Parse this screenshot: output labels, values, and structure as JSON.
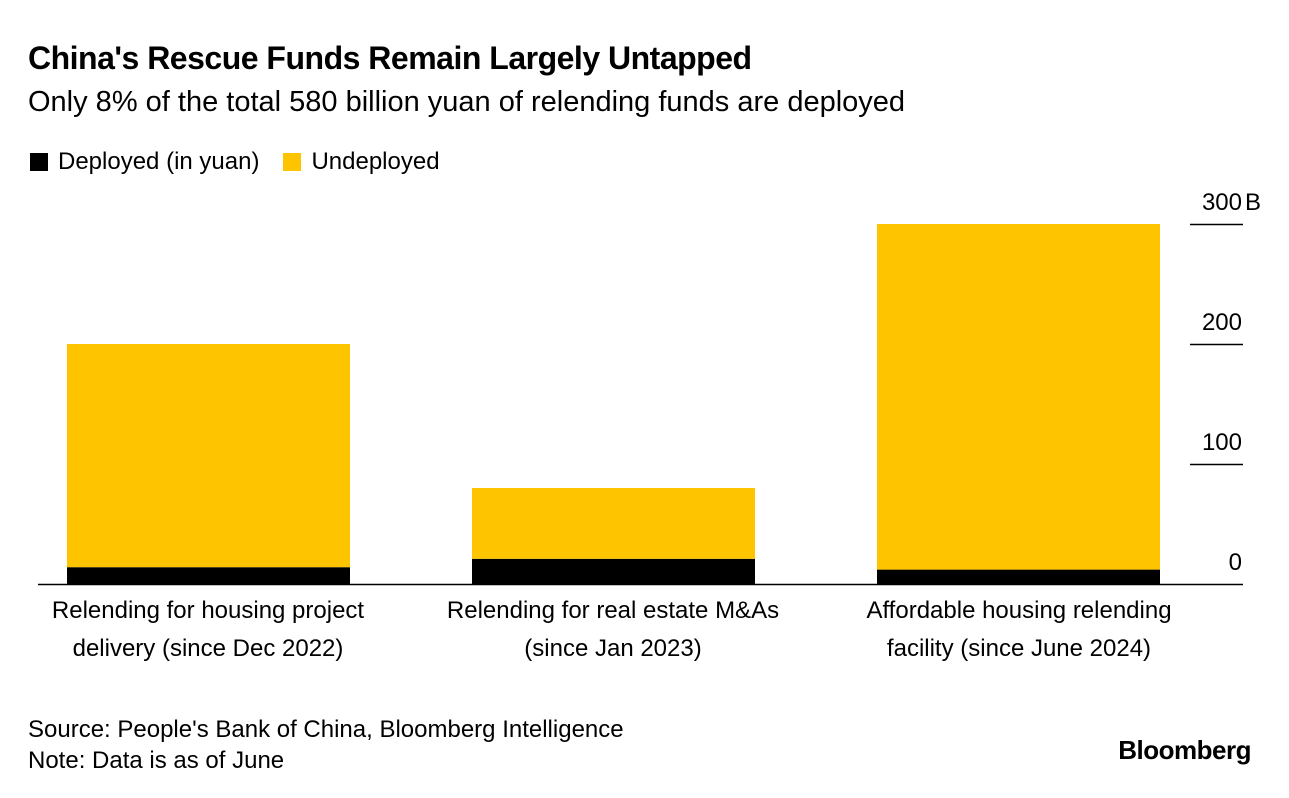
{
  "chart_data": {
    "type": "bar",
    "stacked": true,
    "title": "China's Rescue Funds Remain Largely Untapped",
    "subtitle": "Only 8% of the total 580 billion yuan of relending funds are deployed",
    "categories": [
      [
        "Relending for housing project",
        "delivery (since Dec 2022)"
      ],
      [
        "Relending for real estate M&As",
        "(since Jan 2023)"
      ],
      [
        "Affordable housing relending",
        "facility (since June 2024)"
      ]
    ],
    "series": [
      {
        "name": "Deployed (in yuan)",
        "color": "#000000",
        "values": [
          14,
          21,
          12
        ]
      },
      {
        "name": "Undeployed",
        "color": "#FFC400",
        "values": [
          186,
          59,
          288
        ]
      }
    ],
    "ylim": [
      0,
      300
    ],
    "yticks": [
      {
        "value": 0,
        "label": "0"
      },
      {
        "value": 100,
        "label": "100"
      },
      {
        "value": 200,
        "label": "200"
      },
      {
        "value": 300,
        "label": "300"
      }
    ],
    "yunit": "B",
    "axis_side": "right",
    "legend_position": "top-left"
  },
  "footer": {
    "source": "Source: People's Bank of China, Bloomberg Intelligence",
    "note": "Note: Data is as of June",
    "brand": "Bloomberg"
  }
}
